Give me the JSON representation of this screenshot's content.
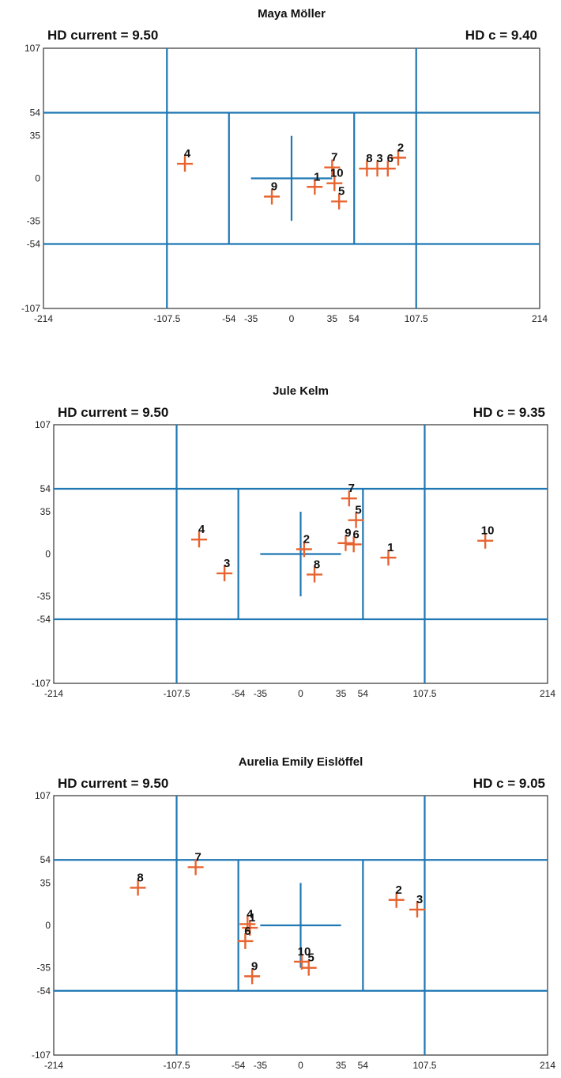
{
  "colors": {
    "grid": "#1f77b4",
    "marker": "#e8632f",
    "frame": "#333333"
  },
  "chart_data": [
    {
      "type": "scatter",
      "title": "Maya Möller",
      "hd_current_label": "HD current = 9.50",
      "hd_c_label": "HD c  = 9.40",
      "xlim": [
        -214,
        214
      ],
      "ylim": [
        -107,
        107
      ],
      "x_ticks": [
        "-214",
        "-107.5",
        "-54",
        "-35",
        "0",
        "35",
        "54",
        "107.5",
        "214"
      ],
      "y_ticks": [
        "107",
        "54",
        "35",
        "0",
        "-35",
        "-54",
        "-107"
      ],
      "grid": {
        "vertical": [
          -107.5,
          -54,
          54,
          107.5
        ],
        "horizontal": [
          54,
          -54
        ],
        "cross_x": [
          -35,
          35
        ],
        "cross_y": [
          -35,
          35
        ]
      },
      "points": [
        {
          "label": "1",
          "x": 20,
          "y": -7
        },
        {
          "label": "2",
          "x": 92,
          "y": 17
        },
        {
          "label": "3",
          "x": 74,
          "y": 8
        },
        {
          "label": "4",
          "x": -92,
          "y": 12
        },
        {
          "label": "5",
          "x": 41,
          "y": -19
        },
        {
          "label": "6",
          "x": 83,
          "y": 8
        },
        {
          "label": "7",
          "x": 35,
          "y": 9
        },
        {
          "label": "8",
          "x": 65,
          "y": 8
        },
        {
          "label": "9",
          "x": -17,
          "y": -15
        },
        {
          "label": "10",
          "x": 37,
          "y": -4
        }
      ]
    },
    {
      "type": "scatter",
      "title": "Jule Kelm",
      "hd_current_label": "HD current = 9.50",
      "hd_c_label": "HD c  = 9.35",
      "xlim": [
        -214,
        214
      ],
      "ylim": [
        -107,
        107
      ],
      "x_ticks": [
        "-214",
        "-107.5",
        "-54",
        "-35",
        "0",
        "35",
        "54",
        "107.5",
        "214"
      ],
      "y_ticks": [
        "107",
        "54",
        "35",
        "0",
        "-35",
        "-54",
        "-107"
      ],
      "grid": {
        "vertical": [
          -107.5,
          -54,
          54,
          107.5
        ],
        "horizontal": [
          54,
          -54
        ],
        "cross_x": [
          -35,
          35
        ],
        "cross_y": [
          -35,
          35
        ]
      },
      "points": [
        {
          "label": "1",
          "x": 76,
          "y": -3
        },
        {
          "label": "2",
          "x": 3,
          "y": 4
        },
        {
          "label": "3",
          "x": -66,
          "y": -16
        },
        {
          "label": "4",
          "x": -88,
          "y": 12
        },
        {
          "label": "5",
          "x": 48,
          "y": 28
        },
        {
          "label": "6",
          "x": 46,
          "y": 8
        },
        {
          "label": "7",
          "x": 42,
          "y": 46
        },
        {
          "label": "8",
          "x": 12,
          "y": -17
        },
        {
          "label": "9",
          "x": 39,
          "y": 9
        },
        {
          "label": "10",
          "x": 160,
          "y": 11
        }
      ]
    },
    {
      "type": "scatter",
      "title": "Aurelia Emily Eislöffel",
      "hd_current_label": "HD current = 9.50",
      "hd_c_label": "HD c  = 9.05",
      "xlim": [
        -214,
        214
      ],
      "ylim": [
        -107,
        107
      ],
      "x_ticks": [
        "-214",
        "-107.5",
        "-54",
        "-35",
        "0",
        "35",
        "54",
        "107.5",
        "214"
      ],
      "y_ticks": [
        "107",
        "54",
        "35",
        "0",
        "-35",
        "-54",
        "-107"
      ],
      "grid": {
        "vertical": [
          -107.5,
          -54,
          54,
          107.5
        ],
        "horizontal": [
          54,
          -54
        ],
        "cross_x": [
          -35,
          35
        ],
        "cross_y": [
          -35,
          35
        ]
      },
      "points": [
        {
          "label": "1",
          "x": -44,
          "y": -2
        },
        {
          "label": "2",
          "x": 83,
          "y": 21
        },
        {
          "label": "3",
          "x": 101,
          "y": 13
        },
        {
          "label": "4",
          "x": -46,
          "y": 1
        },
        {
          "label": "5",
          "x": 7,
          "y": -35
        },
        {
          "label": "6",
          "x": -48,
          "y": -13
        },
        {
          "label": "7",
          "x": -91,
          "y": 48
        },
        {
          "label": "8",
          "x": -141,
          "y": 31
        },
        {
          "label": "9",
          "x": -42,
          "y": -42
        },
        {
          "label": "10",
          "x": 1,
          "y": -30
        }
      ]
    }
  ]
}
